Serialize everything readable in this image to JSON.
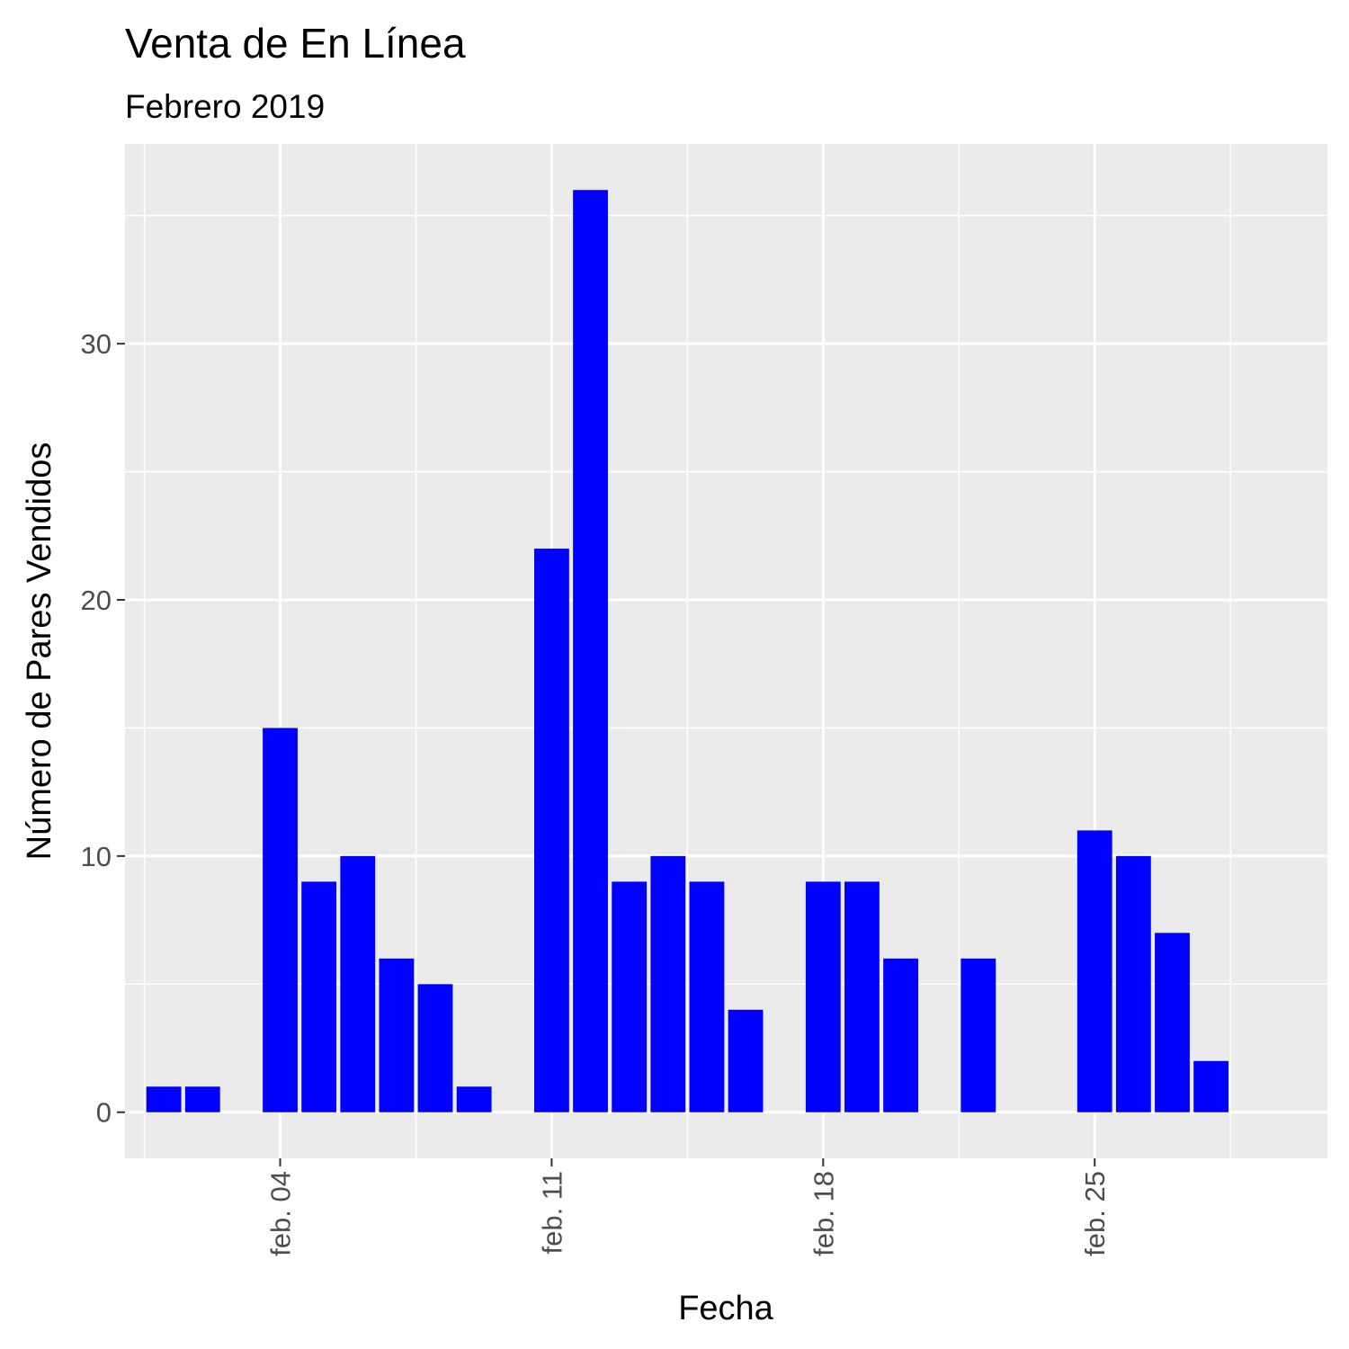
{
  "chart_data": {
    "type": "bar",
    "title": "Venta de En Línea",
    "subtitle": "Febrero 2019",
    "xlabel": "Fecha",
    "ylabel": "Número de Pares Vendidos",
    "x_axis_type": "date",
    "x_tick_labels": [
      {
        "date": "2019-02-04",
        "label": "feb. 04"
      },
      {
        "date": "2019-02-11",
        "label": "feb. 11"
      },
      {
        "date": "2019-02-18",
        "label": "feb. 18"
      },
      {
        "date": "2019-02-25",
        "label": "feb. 25"
      }
    ],
    "x_range": [
      "2019-01-31",
      "2019-03-03"
    ],
    "y_ticks": [
      0,
      10,
      20,
      30
    ],
    "ylim": [
      -1.8,
      37.8
    ],
    "grid": true,
    "bar_color": "#0000ff",
    "panel_background": "#ebebeb",
    "grid_color": "#ffffff",
    "dates": [
      "2019-02-01",
      "2019-02-02",
      "2019-02-04",
      "2019-02-05",
      "2019-02-06",
      "2019-02-07",
      "2019-02-08",
      "2019-02-09",
      "2019-02-11",
      "2019-02-12",
      "2019-02-13",
      "2019-02-14",
      "2019-02-15",
      "2019-02-16",
      "2019-02-18",
      "2019-02-19",
      "2019-02-20",
      "2019-02-22",
      "2019-02-25",
      "2019-02-26",
      "2019-02-27",
      "2019-02-28"
    ],
    "values": [
      1,
      1,
      15,
      9,
      10,
      6,
      5,
      1,
      22,
      36,
      9,
      10,
      9,
      4,
      9,
      9,
      6,
      6,
      11,
      10,
      7,
      2
    ]
  }
}
